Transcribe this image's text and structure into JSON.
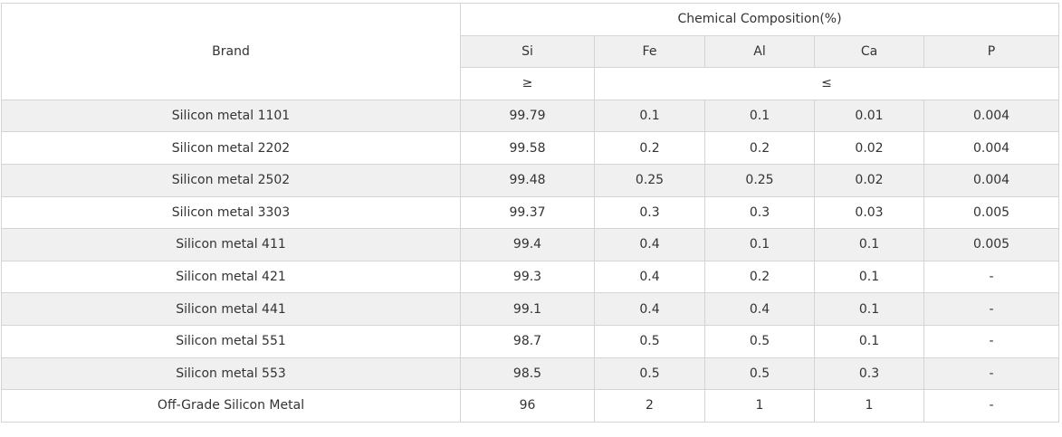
{
  "table": {
    "header": {
      "brand": "Brand",
      "group": "Chemical Composition(%)",
      "columns": [
        "Si",
        "Fe",
        "Al",
        "Ca",
        "P"
      ],
      "limits": [
        "≥",
        "≤"
      ]
    },
    "rows": [
      [
        "Silicon metal 1101",
        "99.79",
        "0.1",
        "0.1",
        "0.01",
        "0.004"
      ],
      [
        "Silicon metal 2202",
        "99.58",
        "0.2",
        "0.2",
        "0.02",
        "0.004"
      ],
      [
        "Silicon metal 2502",
        "99.48",
        "0.25",
        "0.25",
        "0.02",
        "0.004"
      ],
      [
        "Silicon metal 3303",
        "99.37",
        "0.3",
        "0.3",
        "0.03",
        "0.005"
      ],
      [
        "Silicon metal 411",
        "99.4",
        "0.4",
        "0.1",
        "0.1",
        "0.005"
      ],
      [
        "Silicon metal 421",
        "99.3",
        "0.4",
        "0.2",
        "0.1",
        "-"
      ],
      [
        "Silicon metal 441",
        "99.1",
        "0.4",
        "0.4",
        "0.1",
        "-"
      ],
      [
        "Silicon metal 551",
        "98.7",
        "0.5",
        "0.5",
        "0.1",
        "-"
      ],
      [
        "Silicon metal 553",
        "98.5",
        "0.5",
        "0.5",
        "0.3",
        "-"
      ],
      [
        "Off-Grade Silicon Metal",
        "96",
        "2",
        "1",
        "1",
        "-"
      ]
    ]
  }
}
